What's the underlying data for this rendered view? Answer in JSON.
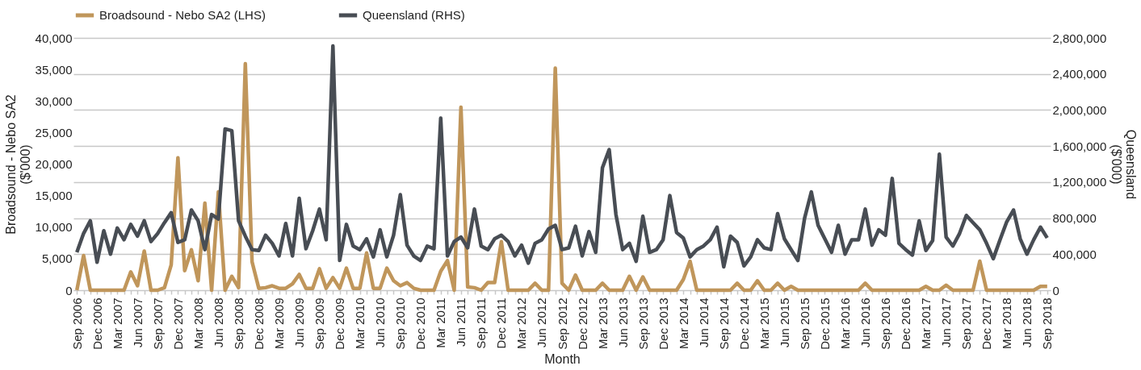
{
  "chart_data": {
    "type": "line",
    "xlabel": "Month",
    "ylabel": "Broadsound - Nebo SA2 ($'000)",
    "y2label": "Queensland ($'000)",
    "categories": [
      "Sep 2006",
      null,
      null,
      "Dec 2006",
      null,
      null,
      "Mar 2007",
      null,
      null,
      "Jun 2007",
      null,
      null,
      "Sep 2007",
      null,
      null,
      "Dec 2007",
      null,
      null,
      "Mar 2008",
      null,
      null,
      "Jun 2008",
      null,
      null,
      "Sep 2008",
      null,
      null,
      "Dec 2008",
      null,
      null,
      "Mar 2009",
      null,
      null,
      "Jun 2009",
      null,
      null,
      "Sep 2009",
      null,
      null,
      "Dec 2009",
      null,
      null,
      "Mar 2010",
      null,
      null,
      "Jun 2010",
      null,
      null,
      "Sep 2010",
      null,
      null,
      "Dec 2010",
      null,
      null,
      "Mar 2011",
      null,
      null,
      "Jun 2011",
      null,
      null,
      "Sep 2011",
      null,
      null,
      "Dec 2011",
      null,
      null,
      "Mar 2012",
      null,
      null,
      "Jun 2012",
      null,
      null,
      "Sep 2012",
      null,
      null,
      "Dec 2012",
      null,
      null,
      "Mar 2013",
      null,
      null,
      "Jun 2013",
      null,
      null,
      "Sep 2013",
      null,
      null,
      "Dec 2013",
      null,
      null,
      "Mar 2014",
      null,
      null,
      "Jun 2014",
      null,
      null,
      "Sep 2014",
      null,
      null,
      "Dec 2014",
      null,
      null,
      "Mar 2015",
      null,
      null,
      "Jun 2015",
      null,
      null,
      "Sep 2015",
      null,
      null,
      "Dec 2015",
      null,
      null,
      "Mar 2016",
      null,
      null,
      "Jun 2016",
      null,
      null,
      "Sep 2016",
      null,
      null,
      "Dec 2016",
      null,
      null,
      "Mar 2017",
      null,
      null,
      "Jun 2017",
      null,
      null,
      "Sep 2017",
      null,
      null,
      "Dec 2017",
      null,
      null,
      "Mar 2018",
      null,
      null,
      "Jun 2018",
      null,
      null,
      "Sep 2018"
    ],
    "ylim": [
      0,
      40000
    ],
    "yticks": [
      0,
      {
        "value": 5000,
        "label": "5,000"
      },
      {
        "value": 10000,
        "label": "10,000"
      },
      {
        "value": 15000,
        "label": "15,000"
      },
      {
        "value": 20000,
        "label": "20,000"
      },
      {
        "value": 25000,
        "label": "25,000"
      },
      {
        "value": 30000,
        "label": "30,000"
      },
      {
        "value": 35000,
        "label": "35,000"
      },
      {
        "value": 40000,
        "label": "40,000"
      }
    ],
    "y2lim": [
      0,
      2800000
    ],
    "y2ticks": [
      0,
      {
        "value": 400000,
        "label": "400,000"
      },
      {
        "value": 800000,
        "label": "800,000"
      },
      {
        "value": 1200000,
        "label": "1,200,000"
      },
      {
        "value": 1600000,
        "label": "1,600,000"
      },
      {
        "value": 2000000,
        "label": "2,000,000"
      },
      {
        "value": 2400000,
        "label": "2,400,000"
      },
      {
        "value": 2800000,
        "label": "2,800,000"
      }
    ],
    "grid": "y",
    "legend": "top",
    "line_style": "solid",
    "series": [
      {
        "name": "Broadsound - Nebo SA2 (LHS)",
        "color": "#c0965b",
        "values": [
          0,
          5500,
          0,
          0,
          0,
          0,
          0,
          0,
          2900,
          700,
          6200,
          0,
          0,
          400,
          4000,
          21000,
          3100,
          6400,
          1500,
          13800,
          0,
          15600,
          0,
          2200,
          400,
          35900,
          4500,
          300,
          400,
          700,
          300,
          300,
          1000,
          2500,
          300,
          300,
          3400,
          300,
          2000,
          300,
          3500,
          300,
          300,
          5900,
          300,
          300,
          3500,
          1500,
          700,
          1200,
          300,
          0,
          0,
          0,
          3000,
          4700,
          0,
          29000,
          500,
          400,
          0,
          1200,
          1200,
          7700,
          0,
          0,
          0,
          0,
          1100,
          0,
          0,
          35200,
          1100,
          0,
          2400,
          0,
          0,
          0,
          1100,
          0,
          0,
          0,
          2200,
          0,
          2100,
          0,
          0,
          0,
          0,
          0,
          1700,
          4600,
          0,
          0,
          0,
          0,
          0,
          0,
          1100,
          0,
          0,
          1500,
          0,
          0,
          1100,
          0,
          600,
          0,
          0,
          0,
          0,
          0,
          0,
          0,
          0,
          0,
          0,
          1100,
          0,
          0,
          0,
          0,
          0,
          0,
          0,
          0,
          600,
          0,
          0,
          800,
          0,
          0,
          0,
          0,
          4600,
          0,
          0,
          0,
          0,
          0,
          0,
          0,
          0,
          600,
          600
        ]
      },
      {
        "name": "Queensland (RHS)",
        "color": "#484d54",
        "axis": "y2",
        "values": [
          420000,
          630000,
          770000,
          310000,
          660000,
          400000,
          690000,
          560000,
          730000,
          600000,
          770000,
          540000,
          630000,
          750000,
          860000,
          530000,
          560000,
          890000,
          770000,
          450000,
          840000,
          790000,
          1790000,
          1770000,
          770000,
          600000,
          450000,
          440000,
          610000,
          520000,
          380000,
          740000,
          380000,
          1020000,
          460000,
          660000,
          900000,
          560000,
          2710000,
          330000,
          730000,
          490000,
          450000,
          570000,
          370000,
          670000,
          370000,
          610000,
          1060000,
          500000,
          380000,
          330000,
          490000,
          460000,
          1910000,
          380000,
          540000,
          590000,
          470000,
          900000,
          490000,
          450000,
          570000,
          610000,
          540000,
          380000,
          500000,
          300000,
          520000,
          560000,
          680000,
          720000,
          450000,
          470000,
          710000,
          380000,
          650000,
          420000,
          1360000,
          1560000,
          840000,
          450000,
          520000,
          320000,
          820000,
          420000,
          450000,
          560000,
          1050000,
          640000,
          580000,
          370000,
          450000,
          490000,
          560000,
          700000,
          260000,
          600000,
          530000,
          270000,
          370000,
          560000,
          470000,
          450000,
          850000,
          570000,
          450000,
          330000,
          800000,
          1090000,
          720000,
          570000,
          420000,
          720000,
          400000,
          560000,
          560000,
          900000,
          500000,
          670000,
          610000,
          1240000,
          520000,
          450000,
          390000,
          770000,
          440000,
          550000,
          1510000,
          590000,
          490000,
          630000,
          830000,
          750000,
          670000,
          520000,
          350000,
          560000,
          760000,
          890000,
          570000,
          400000,
          560000,
          700000,
          580000
        ]
      }
    ]
  }
}
